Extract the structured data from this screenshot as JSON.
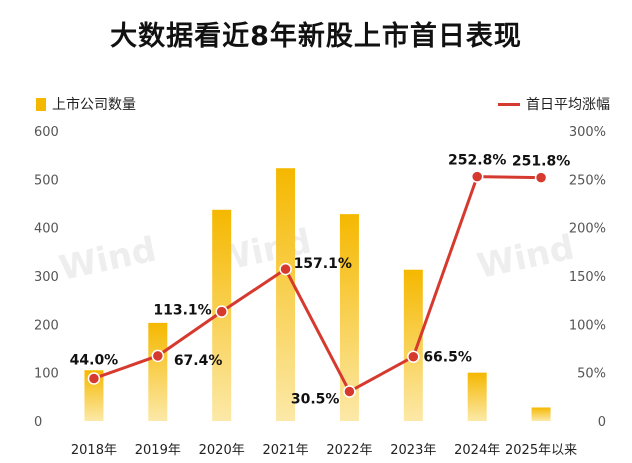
{
  "chart_data": {
    "type": "bar",
    "title": "大数据看近8年新股上市首日表现",
    "categories": [
      "2018年",
      "2019年",
      "2020年",
      "2021年",
      "2022年",
      "2023年",
      "2024年",
      "2025年以来"
    ],
    "series": [
      {
        "name": "上市公司数量",
        "type": "bar",
        "axis": "left",
        "values": [
          105,
          203,
          437,
          523,
          428,
          313,
          100,
          28
        ],
        "color": "#f5b800"
      },
      {
        "name": "首日平均涨幅",
        "type": "line",
        "axis": "right",
        "values": [
          44.0,
          67.4,
          113.1,
          157.1,
          30.5,
          66.5,
          252.8,
          251.8
        ],
        "data_labels": [
          "44.0%",
          "67.4%",
          "113.1%",
          "157.1%",
          "30.5%",
          "66.5%",
          "252.8%",
          "251.8%"
        ],
        "color": "#d63a2f"
      }
    ],
    "y_left": {
      "range": [
        0,
        600
      ],
      "ticks": [
        "0",
        "100",
        "200",
        "300",
        "400",
        "500",
        "600"
      ]
    },
    "y_right": {
      "range": [
        0,
        300
      ],
      "ticks": [
        "0",
        "50%",
        "100%",
        "150%",
        "200%",
        "250%",
        "300%"
      ]
    },
    "grid": false,
    "legend_placement": "top",
    "watermark": "Wind"
  }
}
